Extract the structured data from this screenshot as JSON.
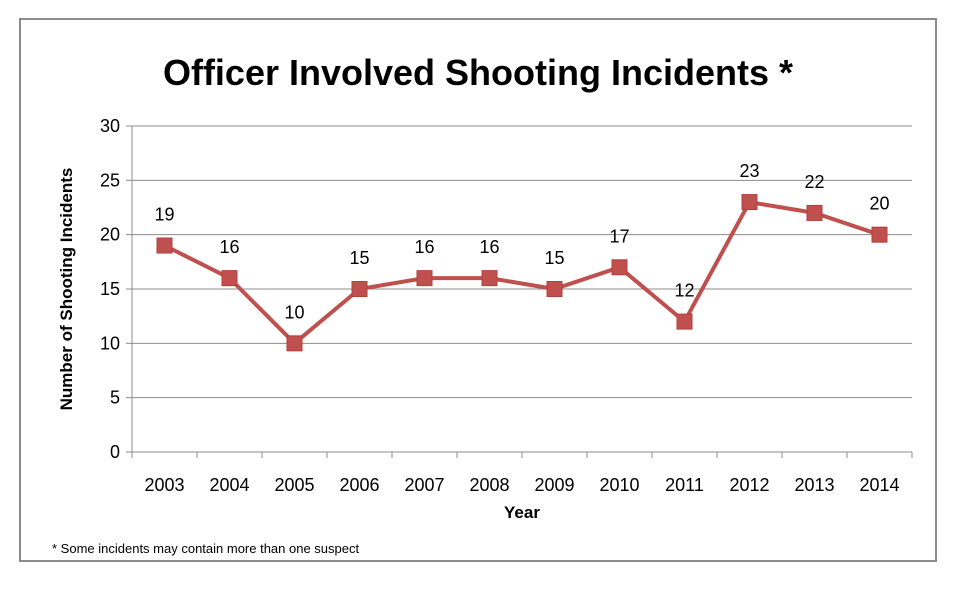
{
  "chart_data": {
    "type": "line",
    "title": "Officer Involved Shooting Incidents *",
    "xlabel": "Year",
    "ylabel": "Number of Shooting Incidents",
    "categories": [
      "2003",
      "2004",
      "2005",
      "2006",
      "2007",
      "2008",
      "2009",
      "2010",
      "2011",
      "2012",
      "2013",
      "2014"
    ],
    "series": [
      {
        "values": [
          19,
          16,
          10,
          15,
          16,
          16,
          15,
          17,
          12,
          23,
          22,
          20
        ],
        "color": "#c0504d",
        "marker": "square",
        "data_labels": true
      }
    ],
    "ylim": [
      0,
      30
    ],
    "yticks": [
      "0",
      "5",
      "10",
      "15",
      "20",
      "25",
      "30"
    ],
    "grid": "horizontal",
    "legend": "none",
    "footnote": "* Some incidents may contain more than one suspect"
  }
}
